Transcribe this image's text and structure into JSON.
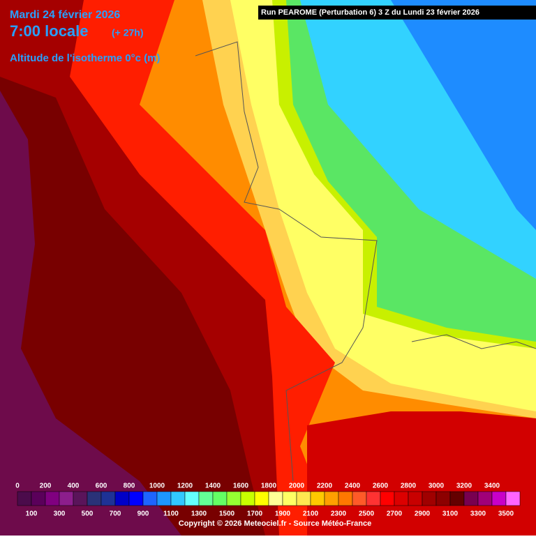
{
  "header": {
    "date": "Mardi 24 février 2026",
    "time": "7:00 locale",
    "lead": "(+ 27h)",
    "parameter": "Altitude de l'isotherme 0°c (m)",
    "run": "Run PEAROME (Perturbation 6) 3 Z du Lundi 23 février 2026"
  },
  "legend": {
    "values": [
      0,
      100,
      200,
      300,
      400,
      500,
      600,
      700,
      800,
      900,
      1000,
      1100,
      1200,
      1300,
      1400,
      1500,
      1600,
      1700,
      1800,
      1900,
      2000,
      2100,
      2200,
      2300,
      2400,
      2500,
      2600,
      2700,
      2800,
      2900,
      3000,
      3100,
      3200,
      3300,
      3400,
      3500
    ],
    "colors": [
      "#4b0b4b",
      "#5a005a",
      "#800080",
      "#8c1e8c",
      "#5a145a",
      "#2a3278",
      "#1e3296",
      "#0000c8",
      "#0000ff",
      "#1e64ff",
      "#1e96ff",
      "#32c8ff",
      "#64ffff",
      "#64ff96",
      "#64ff64",
      "#96ff32",
      "#c8ff00",
      "#ffff00",
      "#ffff96",
      "#ffff64",
      "#ffe650",
      "#ffc800",
      "#ffa000",
      "#ff7800",
      "#ff5a28",
      "#ff3232",
      "#ff0000",
      "#dc0000",
      "#c80000",
      "#a00000",
      "#8c0000",
      "#640000",
      "#780050",
      "#a00078",
      "#c800c8",
      "#ff64ff"
    ]
  },
  "footer": {
    "copyright": "Copyright © 2026 Meteociel.fr - Source Météo-France"
  }
}
